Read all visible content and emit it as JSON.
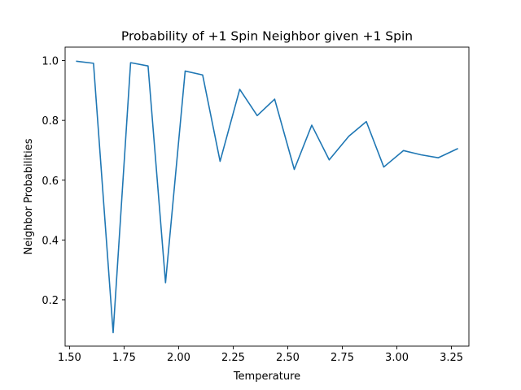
{
  "chart_data": {
    "type": "line",
    "title": "Probability of +1 Spin Neighbor given +1 Spin",
    "xlabel": "Temperature",
    "ylabel": "Neighbor Probabilities",
    "xlim": [
      1.48,
      3.33
    ],
    "ylim": [
      0.045,
      1.045
    ],
    "xticks": [
      1.5,
      1.75,
      2.0,
      2.25,
      2.5,
      2.75,
      3.0,
      3.25
    ],
    "xtick_labels": [
      "1.50",
      "1.75",
      "2.00",
      "2.25",
      "2.50",
      "2.75",
      "3.00",
      "3.25"
    ],
    "yticks": [
      0.2,
      0.4,
      0.6,
      0.8,
      1.0
    ],
    "ytick_labels": [
      "0.2",
      "0.4",
      "0.6",
      "0.8",
      "1.0"
    ],
    "grid": false,
    "line_color": "#1f77b4",
    "series": [
      {
        "x": [
          1.53,
          1.61,
          1.7,
          1.78,
          1.86,
          1.94,
          2.03,
          2.11,
          2.19,
          2.28,
          2.36,
          2.44,
          2.53,
          2.61,
          2.69,
          2.78,
          2.86,
          2.94,
          3.03,
          3.11,
          3.19,
          3.28
        ],
        "values": [
          0.998,
          0.991,
          0.09,
          0.993,
          0.982,
          0.257,
          0.965,
          0.952,
          0.663,
          0.904,
          0.816,
          0.871,
          0.636,
          0.784,
          0.668,
          0.747,
          0.796,
          0.644,
          0.699,
          0.685,
          0.675,
          0.706
        ]
      }
    ]
  }
}
